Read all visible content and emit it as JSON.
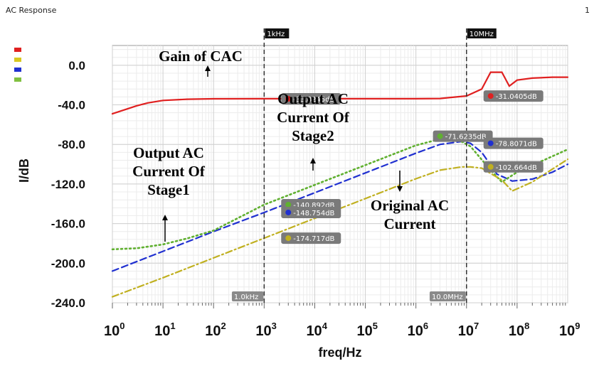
{
  "window": {
    "title": "AC Response",
    "page_number": "1"
  },
  "chart_data": {
    "type": "line",
    "xscale": "log",
    "xlim": [
      1,
      1000000000
    ],
    "ylim": [
      -240,
      20
    ],
    "xlabel": "freq/Hz",
    "ylabel": "I/dB",
    "yticks": [
      "0.0",
      "-40.0",
      "-80.0",
      "-120.0",
      "-160.0",
      "-200.0",
      "-240.0"
    ],
    "xticks": [
      {
        "base": "10",
        "exp": "0"
      },
      {
        "base": "10",
        "exp": "1"
      },
      {
        "base": "10",
        "exp": "2"
      },
      {
        "base": "10",
        "exp": "3"
      },
      {
        "base": "10",
        "exp": "4"
      },
      {
        "base": "10",
        "exp": "5"
      },
      {
        "base": "10",
        "exp": "6"
      },
      {
        "base": "10",
        "exp": "7"
      },
      {
        "base": "10",
        "exp": "8"
      },
      {
        "base": "10",
        "exp": "9"
      }
    ],
    "grid": true,
    "series": [
      {
        "color": "#e02020",
        "style": "solid",
        "x": [
          1,
          2,
          3,
          5,
          10,
          30,
          100,
          1000,
          10000,
          100000,
          1000000,
          3000000,
          10000000,
          20000000,
          30000000,
          50000000,
          70000000,
          100000000,
          200000000,
          500000000,
          1000000000
        ],
        "y": [
          -49,
          -44,
          -41,
          -38,
          -35.5,
          -34.3,
          -33.9,
          -33.8,
          -33.8,
          -33.8,
          -33.8,
          -33.6,
          -31.0,
          -24,
          -7,
          -7,
          -21,
          -15,
          -13,
          -12,
          -12
        ]
      },
      {
        "color": "#2030d0",
        "style": "dash",
        "x": [
          1,
          10,
          100,
          1000,
          10000,
          100000,
          1000000,
          3000000,
          8000000,
          12000000,
          20000000,
          40000000,
          80000000,
          200000000,
          500000000,
          1000000000
        ],
        "y": [
          -208,
          -188,
          -168,
          -148.8,
          -128.8,
          -108.8,
          -88.8,
          -80,
          -77,
          -78.8,
          -88,
          -110,
          -117,
          -115,
          -108,
          -100
        ]
      },
      {
        "color": "#60b030",
        "style": "dot",
        "x": [
          1,
          3,
          10,
          30,
          100,
          1000,
          10000,
          100000,
          1000000,
          5000000,
          12000000,
          30000000,
          50000000,
          100000000,
          1000000000
        ],
        "y": [
          -186,
          -185,
          -181,
          -175,
          -167,
          -140.9,
          -120.9,
          -100.9,
          -80.9,
          -71.6,
          -82,
          -106,
          -118,
          -108,
          -85
        ]
      },
      {
        "color": "#c0b020",
        "style": "dashdot",
        "x": [
          1,
          10,
          100,
          1000,
          10000,
          100000,
          1000000,
          3000000,
          8000000,
          12000000,
          20000000,
          50000000,
          80000000,
          200000000,
          1000000000
        ],
        "y": [
          -234,
          -214.7,
          -194.7,
          -174.7,
          -154.7,
          -134.7,
          -114.7,
          -106,
          -102.7,
          -102.7,
          -104,
          -116,
          -127,
          -118,
          -95
        ]
      }
    ],
    "markers": [
      {
        "x": 3000,
        "y": -33.8245,
        "color": "#e02020",
        "label": "-33.8245dB"
      },
      {
        "x": 30000000,
        "y": -31.0405,
        "color": "#e02020",
        "label": "-31.0405dB"
      },
      {
        "x": 3000000,
        "y": -71.6235,
        "color": "#60b030",
        "label": "-71.6235dB"
      },
      {
        "x": 30000000,
        "y": -78.8071,
        "color": "#2030d0",
        "label": "-78.8071dB"
      },
      {
        "x": 3000,
        "y": -140.892,
        "color": "#60b030",
        "label": "-140.892dB"
      },
      {
        "x": 3000,
        "y": -148.754,
        "color": "#2030d0",
        "label": "-148.754dB"
      },
      {
        "x": 30000000,
        "y": -102.664,
        "color": "#c0b020",
        "label": "-102.664dB"
      },
      {
        "x": 3000,
        "y": -174.717,
        "color": "#c0b020",
        "label": "-174.717dB"
      }
    ],
    "cursors": [
      {
        "x": 1000,
        "label": "1kHz",
        "bottom_label": "1.0kHz"
      },
      {
        "x": 10000000,
        "label": "10MHz",
        "bottom_label": "10.0MHz"
      }
    ],
    "annotations": [
      {
        "lines": [
          "Gain of CAC"
        ]
      },
      {
        "lines": [
          "Output AC",
          "Current Of",
          "Stage2"
        ]
      },
      {
        "lines": [
          "Output AC",
          "Current Of",
          "Stage1"
        ]
      },
      {
        "lines": [
          "Original AC",
          "Current"
        ]
      }
    ],
    "legend_colors": [
      "#e02020",
      "#d8c820",
      "#2030d0",
      "#80c040"
    ]
  }
}
